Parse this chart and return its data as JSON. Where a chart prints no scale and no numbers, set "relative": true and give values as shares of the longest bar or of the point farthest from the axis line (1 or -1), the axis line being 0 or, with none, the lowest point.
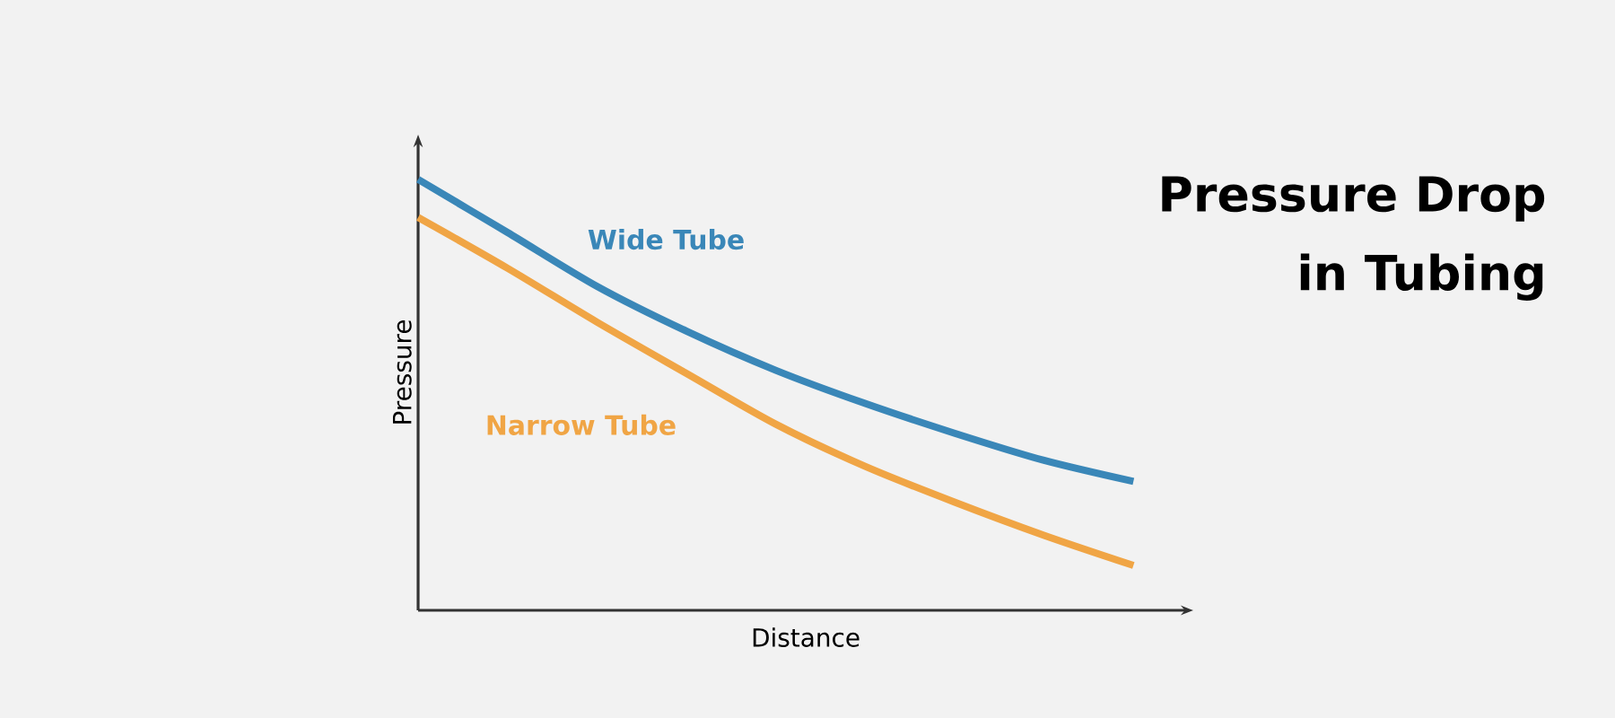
{
  "chart_data": {
    "type": "line",
    "relative": true,
    "title": "Pressure Drop in Tubing",
    "xlabel": "Distance",
    "ylabel": "Pressure",
    "categories": [
      null,
      null,
      null,
      null,
      null,
      null,
      null,
      null,
      null
    ],
    "series": [
      {
        "name": "Wide Tube",
        "color": "#3a87b8",
        "values": [
          1,
          0.877,
          0.752,
          0.648,
          0.557,
          0.48,
          0.411,
          0.348,
          0.299
        ]
      },
      {
        "name": "Narrow Tube",
        "color": "#f0a545",
        "values": [
          0.912,
          0.794,
          0.669,
          0.55,
          0.432,
          0.334,
          0.251,
          0.174,
          0.104
        ]
      }
    ],
    "marker": "none",
    "line_style": "solid",
    "legend": false
  }
}
